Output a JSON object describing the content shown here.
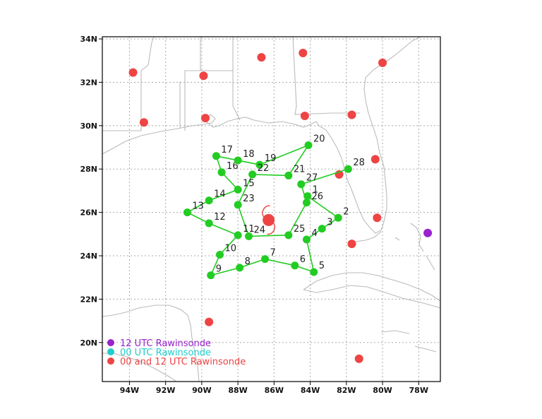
{
  "map": {
    "lon_range": [
      -95.5,
      -76.8
    ],
    "lat_range": [
      18.2,
      34.1
    ],
    "x_ticks": [
      {
        "lon": -94,
        "label": "94W"
      },
      {
        "lon": -92,
        "label": "92W"
      },
      {
        "lon": -90,
        "label": "90W"
      },
      {
        "lon": -88,
        "label": "88W"
      },
      {
        "lon": -86,
        "label": "86W"
      },
      {
        "lon": -84,
        "label": "84W"
      },
      {
        "lon": -82,
        "label": "82W"
      },
      {
        "lon": -80,
        "label": "80W"
      },
      {
        "lon": -78,
        "label": "78W"
      }
    ],
    "y_ticks": [
      {
        "lat": 20,
        "label": "20N"
      },
      {
        "lat": 22,
        "label": "22N"
      },
      {
        "lat": 24,
        "label": "24N"
      },
      {
        "lat": 26,
        "label": "26N"
      },
      {
        "lat": 28,
        "label": "28N"
      },
      {
        "lat": 30,
        "label": "30N"
      },
      {
        "lat": 32,
        "label": "32N"
      },
      {
        "lat": 34,
        "label": "34N"
      }
    ],
    "grid": "dotted"
  },
  "colors": {
    "flight": "#22cc22",
    "rawinsonde_both": "#ee4444",
    "rawinsonde_12": "#9922cc",
    "rawinsonde_00": "#22cccc",
    "storm": "#ee4444",
    "land": "#bbbbbb"
  },
  "flight_track": [
    {
      "n": "1",
      "lon": -84.15,
      "lat": 26.75
    },
    {
      "n": "2",
      "lon": -82.45,
      "lat": 25.75
    },
    {
      "n": "3",
      "lon": -83.35,
      "lat": 25.25
    },
    {
      "n": "4",
      "lon": -84.2,
      "lat": 24.75
    },
    {
      "n": "5",
      "lon": -83.8,
      "lat": 23.25
    },
    {
      "n": "6",
      "lon": -84.85,
      "lat": 23.55
    },
    {
      "n": "7",
      "lon": -86.5,
      "lat": 23.85
    },
    {
      "n": "8",
      "lon": -87.9,
      "lat": 23.45
    },
    {
      "n": "9",
      "lon": -89.5,
      "lat": 23.1
    },
    {
      "n": "10",
      "lon": -89.0,
      "lat": 24.05
    },
    {
      "n": "11",
      "lon": -88.0,
      "lat": 24.95
    },
    {
      "n": "12",
      "lon": -89.6,
      "lat": 25.5
    },
    {
      "n": "13",
      "lon": -90.8,
      "lat": 26.0
    },
    {
      "n": "14",
      "lon": -89.6,
      "lat": 26.55
    },
    {
      "n": "15",
      "lon": -88.0,
      "lat": 27.05
    },
    {
      "n": "16",
      "lon": -88.9,
      "lat": 27.85
    },
    {
      "n": "17",
      "lon": -89.2,
      "lat": 28.6
    },
    {
      "n": "18",
      "lon": -88.0,
      "lat": 28.4
    },
    {
      "n": "19",
      "lon": -86.8,
      "lat": 28.2
    },
    {
      "n": "20",
      "lon": -84.1,
      "lat": 29.1
    },
    {
      "n": "21",
      "lon": -85.2,
      "lat": 27.7
    },
    {
      "n": "22",
      "lon": -87.2,
      "lat": 27.75
    },
    {
      "n": "23",
      "lon": -88.0,
      "lat": 26.35
    },
    {
      "n": "24",
      "lon": -87.4,
      "lat": 24.9
    },
    {
      "n": "25",
      "lon": -85.2,
      "lat": 24.95
    },
    {
      "n": "26",
      "lon": -84.2,
      "lat": 26.45
    },
    {
      "n": "27",
      "lon": -84.5,
      "lat": 27.3
    },
    {
      "n": "28",
      "lon": -81.9,
      "lat": 28.0
    }
  ],
  "storm": {
    "lon": -86.3,
    "lat": 25.65
  },
  "rawinsondes_both": [
    {
      "lon": -93.8,
      "lat": 32.45
    },
    {
      "lon": -89.9,
      "lat": 32.3
    },
    {
      "lon": -86.7,
      "lat": 33.15
    },
    {
      "lon": -84.4,
      "lat": 33.35
    },
    {
      "lon": -80.0,
      "lat": 32.9
    },
    {
      "lon": -93.2,
      "lat": 30.15
    },
    {
      "lon": -89.8,
      "lat": 30.35
    },
    {
      "lon": -84.3,
      "lat": 30.45
    },
    {
      "lon": -81.7,
      "lat": 30.5
    },
    {
      "lon": -82.4,
      "lat": 27.75
    },
    {
      "lon": -80.4,
      "lat": 28.45
    },
    {
      "lon": -80.3,
      "lat": 25.75
    },
    {
      "lon": -81.7,
      "lat": 24.55
    },
    {
      "lon": -89.6,
      "lat": 20.95
    },
    {
      "lon": -81.3,
      "lat": 19.25
    }
  ],
  "rawinsondes_12": [
    {
      "lon": -77.5,
      "lat": 25.05
    }
  ],
  "legend": [
    {
      "label": "12 UTC Rawinsonde",
      "color_key": "rawinsonde_12"
    },
    {
      "label": "00 UTC Rawinsonde",
      "color_key": "rawinsonde_00"
    },
    {
      "label": "00 and 12 UTC Rawinsonde",
      "color_key": "rawinsonde_both"
    }
  ]
}
